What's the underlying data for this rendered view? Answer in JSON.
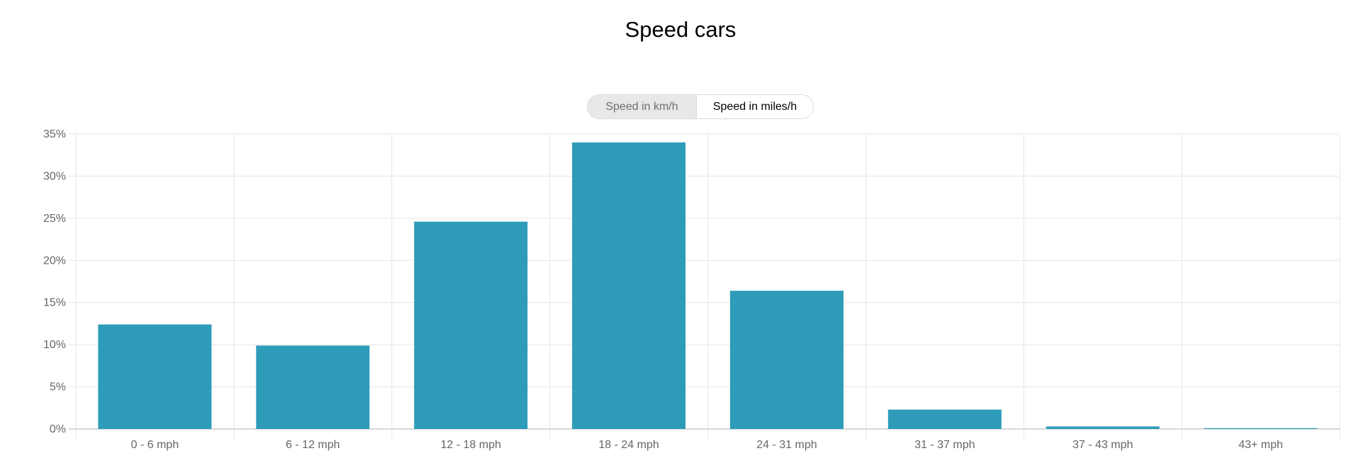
{
  "title": "Speed cars",
  "toggle": {
    "options": [
      "Speed in km/h",
      "Speed in miles/h"
    ],
    "selected": "Speed in miles/h"
  },
  "colors": {
    "bar": "#2e9cb8",
    "grid": "#e5e5e5",
    "axis": "#b0b0b0"
  },
  "chart_data": {
    "type": "bar",
    "title": "Speed cars",
    "categories": [
      "0 - 6 mph",
      "6 - 12 mph",
      "12 - 18 mph",
      "18 - 24 mph",
      "24 - 31 mph",
      "31 - 37 mph",
      "37 - 43 mph",
      "43+ mph"
    ],
    "values": [
      12.4,
      9.9,
      24.6,
      34.0,
      16.4,
      2.3,
      0.3,
      0.1
    ],
    "ylim": [
      0,
      35
    ],
    "yticks": [
      "0%",
      "5%",
      "10%",
      "15%",
      "20%",
      "25%",
      "30%",
      "35%"
    ],
    "xlabel": "",
    "ylabel": "",
    "grid": true,
    "legend": "none"
  }
}
